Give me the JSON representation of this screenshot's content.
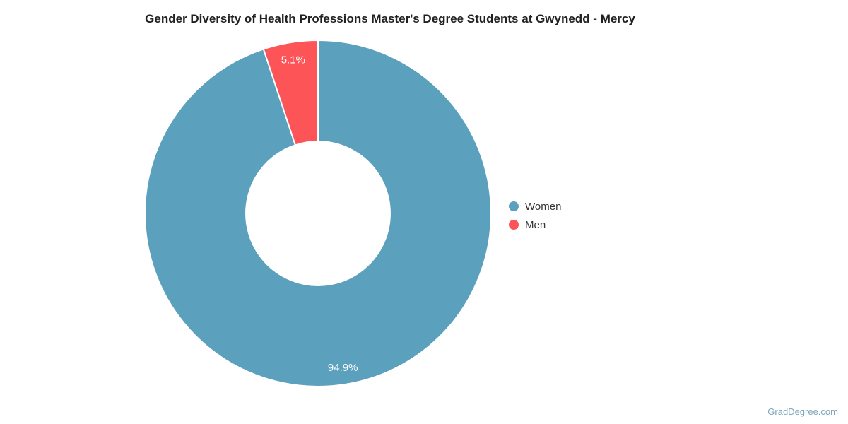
{
  "page": {
    "background": "#ffffff"
  },
  "watermark": "GradDegree.com",
  "chart_data": {
    "type": "pie",
    "subtype": "donut",
    "title": "Gender Diversity of Health Professions Master's Degree Students at Gwynedd - Mercy",
    "categories": [
      "Women",
      "Men"
    ],
    "values": [
      94.9,
      5.1
    ],
    "unit": "%",
    "slices": [
      {
        "label": "Women",
        "value": 94.9,
        "display_label": "94.9%",
        "color": "#5BA0BD"
      },
      {
        "label": "Men",
        "value": 5.1,
        "display_label": "5.1%",
        "color": "#FC5457"
      }
    ],
    "start_angle_deg": 0,
    "direction": "clockwise",
    "inner_radius_ratio": 0.416,
    "data_label_radius_ratio": 0.9,
    "data_label_color": "#ffffff",
    "slice_border_color": "#ffffff",
    "legend_position": "right",
    "grid": "off"
  }
}
